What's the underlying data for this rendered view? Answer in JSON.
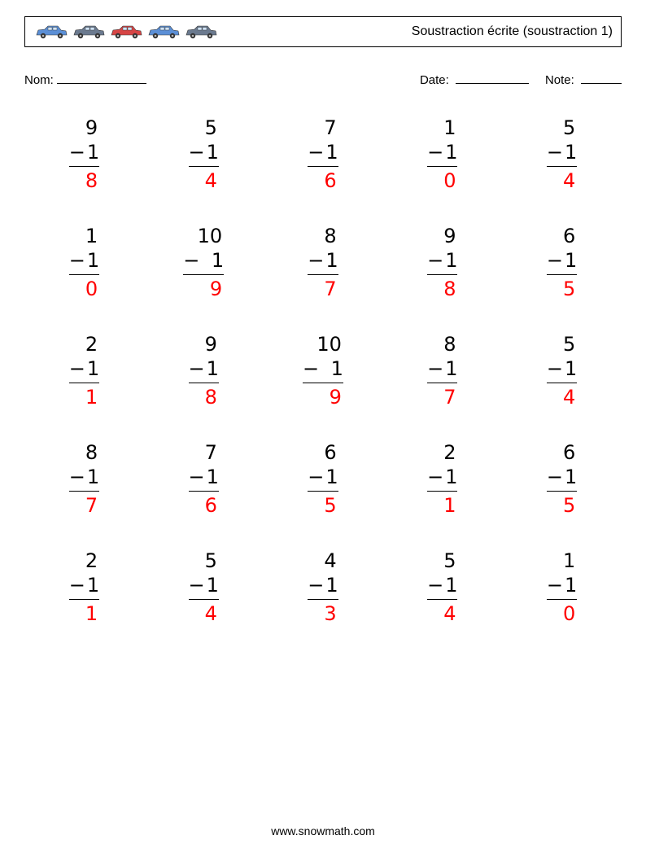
{
  "header": {
    "title": "Soustraction écrite (soustraction 1)",
    "car_colors": [
      "#5b8fd6",
      "#6b7a8f",
      "#d64545",
      "#5b8fd6",
      "#6b7a8f"
    ]
  },
  "info": {
    "name_label": "Nom:",
    "date_label": "Date:",
    "note_label": "Note:",
    "name_blank_width": 110,
    "date_blank_width": 90,
    "note_blank_width": 50
  },
  "problems": [
    {
      "minuend": "9",
      "subtrahend": "1",
      "answer": "8"
    },
    {
      "minuend": "5",
      "subtrahend": "1",
      "answer": "4"
    },
    {
      "minuend": "7",
      "subtrahend": "1",
      "answer": "6"
    },
    {
      "minuend": "1",
      "subtrahend": "1",
      "answer": "0"
    },
    {
      "minuend": "5",
      "subtrahend": "1",
      "answer": "4"
    },
    {
      "minuend": "1",
      "subtrahend": "1",
      "answer": "0"
    },
    {
      "minuend": "10",
      "subtrahend": "1",
      "answer": "9"
    },
    {
      "minuend": "8",
      "subtrahend": "1",
      "answer": "7"
    },
    {
      "minuend": "9",
      "subtrahend": "1",
      "answer": "8"
    },
    {
      "minuend": "6",
      "subtrahend": "1",
      "answer": "5"
    },
    {
      "minuend": "2",
      "subtrahend": "1",
      "answer": "1"
    },
    {
      "minuend": "9",
      "subtrahend": "1",
      "answer": "8"
    },
    {
      "minuend": "10",
      "subtrahend": "1",
      "answer": "9"
    },
    {
      "minuend": "8",
      "subtrahend": "1",
      "answer": "7"
    },
    {
      "minuend": "5",
      "subtrahend": "1",
      "answer": "4"
    },
    {
      "minuend": "8",
      "subtrahend": "1",
      "answer": "7"
    },
    {
      "minuend": "7",
      "subtrahend": "1",
      "answer": "6"
    },
    {
      "minuend": "6",
      "subtrahend": "1",
      "answer": "5"
    },
    {
      "minuend": "2",
      "subtrahend": "1",
      "answer": "1"
    },
    {
      "minuend": "6",
      "subtrahend": "1",
      "answer": "5"
    },
    {
      "minuend": "2",
      "subtrahend": "1",
      "answer": "1"
    },
    {
      "minuend": "5",
      "subtrahend": "1",
      "answer": "4"
    },
    {
      "minuend": "4",
      "subtrahend": "1",
      "answer": "3"
    },
    {
      "minuend": "5",
      "subtrahend": "1",
      "answer": "4"
    },
    {
      "minuend": "1",
      "subtrahend": "1",
      "answer": "0"
    }
  ],
  "operator": "−",
  "style": {
    "answer_color": "#ff0000",
    "text_color": "#000000",
    "font_size_problem": 24,
    "font_size_header": 16,
    "font_size_info": 15,
    "grid": {
      "cols": 5,
      "rows": 5
    }
  },
  "footer": {
    "text": "www.snowmath.com"
  }
}
